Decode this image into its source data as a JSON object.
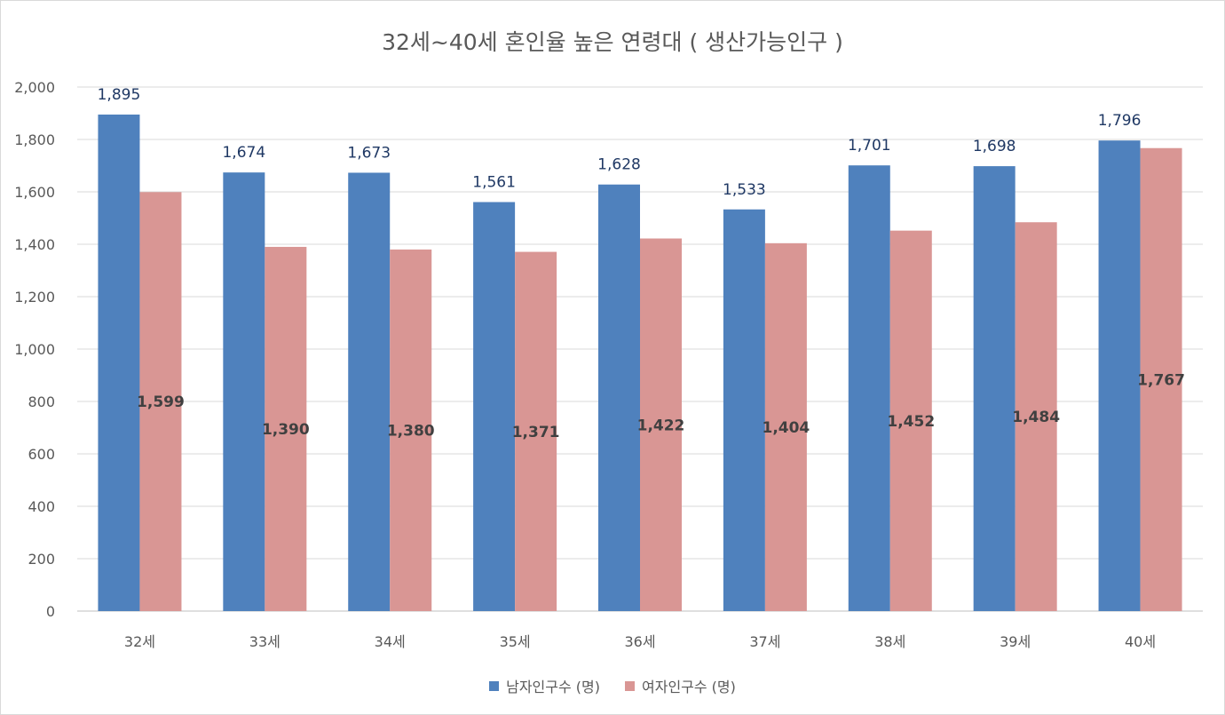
{
  "chart_data": {
    "type": "bar",
    "title": "32세~40세 혼인율 높은 연령대 ( 생산가능인구 )",
    "categories": [
      "32세",
      "33세",
      "34세",
      "35세",
      "36세",
      "37세",
      "38세",
      "39세",
      "40세"
    ],
    "series": [
      {
        "name": "남자인구수 (명)",
        "color": "#4f81bd",
        "values": [
          1895,
          1674,
          1673,
          1561,
          1628,
          1533,
          1701,
          1698,
          1796
        ]
      },
      {
        "name": "여자인구수 (명)",
        "color": "#d99694",
        "values": [
          1599,
          1390,
          1380,
          1371,
          1422,
          1404,
          1452,
          1484,
          1767
        ]
      }
    ],
    "ylim": [
      0,
      2000
    ],
    "yticks": [
      0,
      200,
      400,
      600,
      800,
      1000,
      1200,
      1400,
      1600,
      1800,
      2000
    ],
    "yticklabels": [
      "0",
      "200",
      "400",
      "600",
      "800",
      "1,000",
      "1,200",
      "1,400",
      "1,600",
      "1,800",
      "2,000"
    ],
    "data_labels": [
      [
        "1,895",
        "1,674",
        "1,673",
        "1,561",
        "1,628",
        "1,533",
        "1,701",
        "1,698",
        "1,796"
      ],
      [
        "1,599",
        "1,390",
        "1,380",
        "1,371",
        "1,422",
        "1,404",
        "1,452",
        "1,484",
        "1,767"
      ]
    ],
    "grid": true,
    "legend_position": "bottom"
  }
}
